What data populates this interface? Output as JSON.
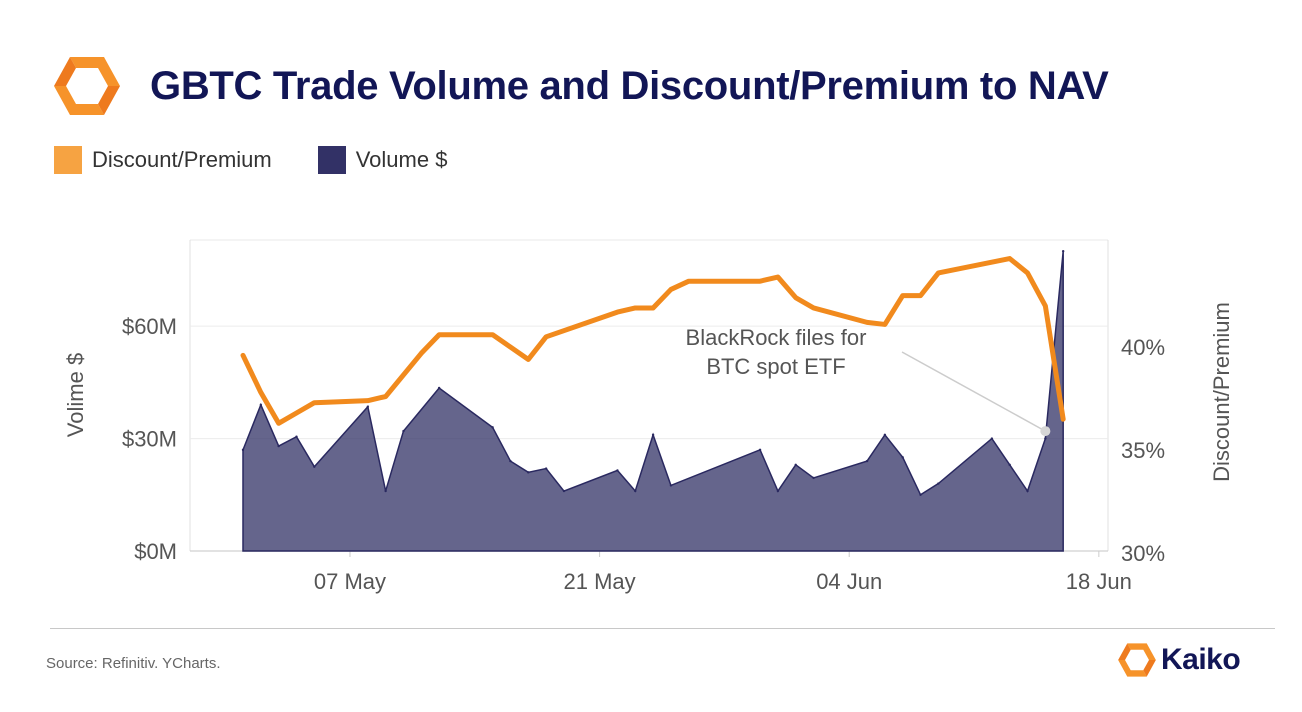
{
  "header": {
    "title": "GBTC Trade Volume and Discount/Premium to NAV"
  },
  "footer": {
    "source": "Source: Refinitiv. YCharts.",
    "brand": "Kaiko"
  },
  "colors": {
    "discount_premium": "#F6932A",
    "volume": "#323166",
    "title": "#121656"
  },
  "chart_data": {
    "type": "area+line",
    "legend": [
      "Discount/Premium",
      "Volume $"
    ],
    "legend_position": "top-left",
    "grid": true,
    "x_ticks": [
      "07 May",
      "21 May",
      "04 Jun",
      "18 Jun"
    ],
    "left_axis": {
      "label": "Volime $",
      "ticks": [
        "$0M",
        "$30M",
        "$60M"
      ],
      "range": [
        0,
        83
      ]
    },
    "right_axis": {
      "label": "Discount/Premium",
      "ticks": [
        "30%",
        "35%",
        "40%"
      ],
      "range": [
        30.1,
        45.2
      ]
    },
    "annotation": {
      "text": [
        "BlackRock files for",
        "BTC spot ETF"
      ],
      "date": "Jun 15",
      "volume": 32
    },
    "series": [
      {
        "name": "Volume $",
        "kind": "area",
        "axis": "left",
        "points": [
          [
            "May 1",
            27
          ],
          [
            "May 2",
            39
          ],
          [
            "May 3",
            28
          ],
          [
            "May 4",
            30.5
          ],
          [
            "May 5",
            22.5
          ],
          [
            "May 8",
            38.5
          ],
          [
            "May 9",
            16
          ],
          [
            "May 10",
            32
          ],
          [
            "May 12",
            43.5
          ],
          [
            "May 15",
            33
          ],
          [
            "May 16",
            24
          ],
          [
            "May 17",
            21
          ],
          [
            "May 18",
            22
          ],
          [
            "May 19",
            16
          ],
          [
            "May 22",
            21.5
          ],
          [
            "May 23",
            16
          ],
          [
            "May 24",
            31
          ],
          [
            "May 25",
            17.5
          ],
          [
            "May 30",
            27
          ],
          [
            "May 31",
            16
          ],
          [
            "Jun 1",
            23
          ],
          [
            "Jun 2",
            19.5
          ],
          [
            "Jun 5",
            24
          ],
          [
            "Jun 6",
            31
          ],
          [
            "Jun 7",
            25
          ],
          [
            "Jun 8",
            15
          ],
          [
            "Jun 9",
            18
          ],
          [
            "Jun 12",
            30
          ],
          [
            "Jun 13",
            23
          ],
          [
            "Jun 14",
            16
          ],
          [
            "Jun 15",
            30
          ],
          [
            "Jun 16",
            80
          ]
        ]
      },
      {
        "name": "Discount/Premium",
        "kind": "line",
        "axis": "right",
        "points": [
          [
            "May 1",
            39.6
          ],
          [
            "May 2",
            37.8
          ],
          [
            "May 3",
            36.3
          ],
          [
            "May 4",
            36.8
          ],
          [
            "May 5",
            37.3
          ],
          [
            "May 8",
            37.4
          ],
          [
            "May 9",
            37.6
          ],
          [
            "May 11",
            39.7
          ],
          [
            "May 12",
            40.6
          ],
          [
            "May 15",
            40.6
          ],
          [
            "May 16",
            40.0
          ],
          [
            "May 17",
            39.4
          ],
          [
            "May 18",
            40.5
          ],
          [
            "May 22",
            41.7
          ],
          [
            "May 23",
            41.9
          ],
          [
            "May 24",
            41.9
          ],
          [
            "May 25",
            42.8
          ],
          [
            "May 26",
            43.2
          ],
          [
            "May 30",
            43.2
          ],
          [
            "May 31",
            43.4
          ],
          [
            "Jun 1",
            42.4
          ],
          [
            "Jun 2",
            41.9
          ],
          [
            "Jun 5",
            41.2
          ],
          [
            "Jun 6",
            41.1
          ],
          [
            "Jun 7",
            42.5
          ],
          [
            "Jun 8",
            42.5
          ],
          [
            "Jun 9",
            43.6
          ],
          [
            "Jun 13",
            44.3
          ],
          [
            "Jun 14",
            43.6
          ],
          [
            "Jun 15",
            42.0
          ],
          [
            "Jun 16",
            36.5
          ]
        ]
      }
    ]
  }
}
